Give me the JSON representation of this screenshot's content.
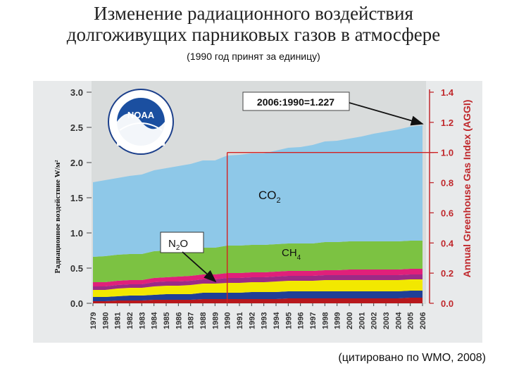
{
  "title_line1": "Изменение радиационного воздействия",
  "title_line2": "долгоживущих парниковых газов в атмосфере",
  "subtitle": "(1990 год принят за единицу)",
  "citation": "(цитировано по WMO, 2008)",
  "logo_text": "NOAA",
  "chart_data": {
    "type": "area",
    "stacked": true,
    "ylabel_left": "Радиационное воздействие W/м²",
    "ylabel_right": "Annual Greenhouse Gas Index (AGGI)",
    "ylim_left": [
      0,
      3.0
    ],
    "ylim_right": [
      0,
      1.4
    ],
    "yticks_left": [
      "0.0",
      "0.5",
      "1.0",
      "1.5",
      "2.0",
      "2.5",
      "3.0"
    ],
    "yticks_right": [
      "0.0",
      "0.2",
      "0.4",
      "0.6",
      "0.8",
      "1.0",
      "1.2",
      "1.4"
    ],
    "x": [
      "1979",
      "1980",
      "1981",
      "1982",
      "1983",
      "1984",
      "1985",
      "1986",
      "1987",
      "1988",
      "1989",
      "1990",
      "1991",
      "1992",
      "1993",
      "1994",
      "1995",
      "1996",
      "1997",
      "1998",
      "1999",
      "2000",
      "2001",
      "2002",
      "2003",
      "2004",
      "2005",
      "2006"
    ],
    "series": [
      {
        "name": "",
        "color": "#b8181c",
        "values": [
          0.03,
          0.03,
          0.04,
          0.04,
          0.04,
          0.05,
          0.05,
          0.05,
          0.05,
          0.06,
          0.06,
          0.06,
          0.06,
          0.06,
          0.06,
          0.06,
          0.07,
          0.07,
          0.07,
          0.07,
          0.07,
          0.07,
          0.07,
          0.07,
          0.07,
          0.07,
          0.08,
          0.08
        ]
      },
      {
        "name": "",
        "color": "#1f3f96",
        "values": [
          0.06,
          0.06,
          0.06,
          0.07,
          0.07,
          0.07,
          0.08,
          0.08,
          0.08,
          0.09,
          0.09,
          0.09,
          0.09,
          0.1,
          0.1,
          0.1,
          0.1,
          0.1,
          0.1,
          0.1,
          0.1,
          0.1,
          0.1,
          0.1,
          0.1,
          0.1,
          0.1,
          0.1
        ]
      },
      {
        "name": "N2O",
        "color": "#f2e800",
        "values": [
          0.1,
          0.1,
          0.11,
          0.11,
          0.11,
          0.12,
          0.12,
          0.12,
          0.13,
          0.13,
          0.13,
          0.14,
          0.14,
          0.14,
          0.14,
          0.15,
          0.15,
          0.15,
          0.15,
          0.16,
          0.16,
          0.16,
          0.16,
          0.16,
          0.16,
          0.16,
          0.16,
          0.16
        ]
      },
      {
        "name": "",
        "color": "#9c2a86",
        "values": [
          0.05,
          0.05,
          0.05,
          0.05,
          0.05,
          0.06,
          0.06,
          0.06,
          0.06,
          0.06,
          0.06,
          0.07,
          0.07,
          0.07,
          0.07,
          0.07,
          0.07,
          0.07,
          0.07,
          0.07,
          0.07,
          0.07,
          0.07,
          0.07,
          0.07,
          0.07,
          0.07,
          0.07
        ]
      },
      {
        "name": "",
        "color": "#e0207a",
        "values": [
          0.06,
          0.06,
          0.06,
          0.06,
          0.06,
          0.06,
          0.06,
          0.07,
          0.07,
          0.07,
          0.07,
          0.07,
          0.07,
          0.07,
          0.07,
          0.07,
          0.07,
          0.07,
          0.07,
          0.07,
          0.07,
          0.08,
          0.08,
          0.08,
          0.08,
          0.08,
          0.08,
          0.08
        ]
      },
      {
        "name": "CH4",
        "color": "#7cc242",
        "values": [
          0.36,
          0.37,
          0.37,
          0.37,
          0.37,
          0.38,
          0.38,
          0.38,
          0.38,
          0.38,
          0.38,
          0.39,
          0.39,
          0.39,
          0.39,
          0.39,
          0.39,
          0.39,
          0.39,
          0.4,
          0.4,
          0.4,
          0.4,
          0.4,
          0.4,
          0.4,
          0.4,
          0.4
        ]
      },
      {
        "name": "CO2",
        "color": "#8ec8e8",
        "values": [
          1.06,
          1.08,
          1.09,
          1.11,
          1.13,
          1.15,
          1.17,
          1.19,
          1.21,
          1.24,
          1.24,
          1.28,
          1.29,
          1.3,
          1.3,
          1.33,
          1.36,
          1.37,
          1.4,
          1.43,
          1.44,
          1.46,
          1.49,
          1.53,
          1.56,
          1.59,
          1.62,
          1.64
        ]
      }
    ],
    "reference_year": "1990",
    "annotation": "2006:1990=1.227",
    "grid": false
  }
}
